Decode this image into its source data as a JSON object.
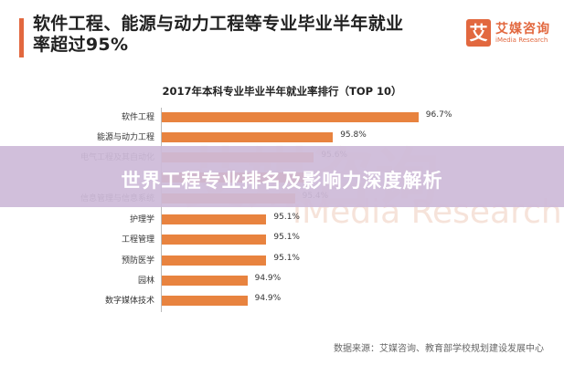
{
  "header": {
    "headline_line1": "软件工程、能源与动力工程等专业毕业半年就业",
    "headline_line2": "率超过95%",
    "accent_color": "#e2683f"
  },
  "logo": {
    "mark": "艾",
    "name_cn": "艾媒咨询",
    "name_en": "iMedia Research"
  },
  "watermark": {
    "cn": "艾媒咨询",
    "en": "iMedia Research"
  },
  "banner": {
    "text": "世界工程专业排名及影响力深度解析",
    "color": "#cebad8"
  },
  "source": "数据来源：艾媒咨询、教育部学校规划建设发展中心",
  "chart_data": {
    "type": "bar",
    "orientation": "horizontal",
    "title": "2017年本科专业毕业半年就业率排行（TOP 10）",
    "xlabel": "",
    "ylabel": "",
    "categories": [
      "软件工程",
      "能源与动力工程",
      "电气工程及其自动化",
      "",
      "信息管理与信息系统",
      "护理学",
      "工程管理",
      "预防医学",
      "园林",
      "数字媒体技术"
    ],
    "values": [
      96.7,
      95.8,
      95.6,
      95.5,
      95.4,
      95.1,
      95.1,
      95.1,
      94.9,
      94.9
    ],
    "value_labels": [
      "96.7%",
      "95.8%",
      "95.6%",
      "",
      "95.4%",
      "95.1%",
      "95.1%",
      "95.1%",
      "94.9%",
      "94.9%"
    ],
    "bar_color": "#e8833f",
    "grid": false,
    "legend": "none"
  }
}
